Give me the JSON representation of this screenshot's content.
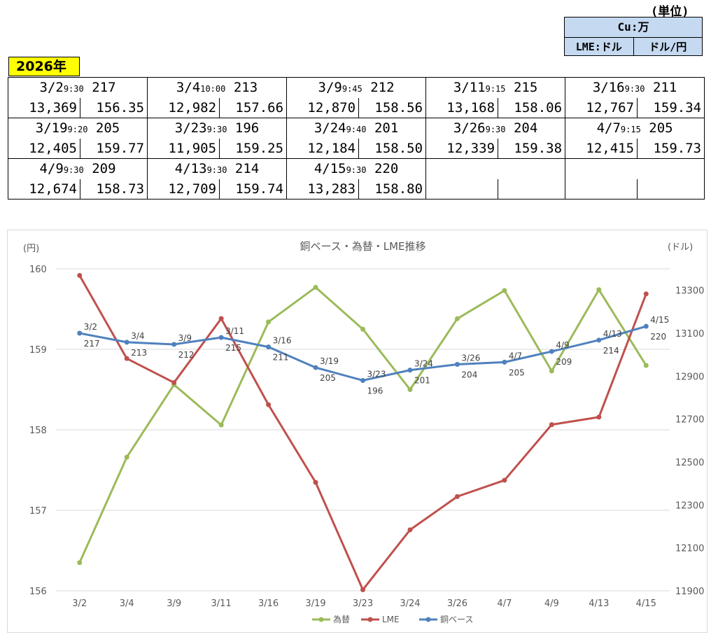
{
  "unit": {
    "label": "(単位)",
    "cu": "Cu:万",
    "lme": "LME:ドル",
    "fx": "ドル/円"
  },
  "year": "2026年",
  "entries": [
    {
      "date": "3/2",
      "time": "9:30",
      "base": "217",
      "lme": "13,369",
      "fx": "156.35"
    },
    {
      "date": "3/4",
      "time": "10:00",
      "base": "213",
      "lme": "12,982",
      "fx": "157.66"
    },
    {
      "date": "3/9",
      "time": "9:45",
      "base": "212",
      "lme": "12,870",
      "fx": "158.56"
    },
    {
      "date": "3/11",
      "time": "9:15",
      "base": "215",
      "lme": "13,168",
      "fx": "158.06"
    },
    {
      "date": "3/16",
      "time": "9:30",
      "base": "211",
      "lme": "12,767",
      "fx": "159.34"
    },
    {
      "date": "3/19",
      "time": "9:20",
      "base": "205",
      "lme": "12,405",
      "fx": "159.77"
    },
    {
      "date": "3/23",
      "time": "9:30",
      "base": "196",
      "lme": "11,905",
      "fx": "159.25"
    },
    {
      "date": "3/24",
      "time": "9:40",
      "base": "201",
      "lme": "12,184",
      "fx": "158.50"
    },
    {
      "date": "3/26",
      "time": "9:30",
      "base": "204",
      "lme": "12,339",
      "fx": "159.38"
    },
    {
      "date": "4/7",
      "time": "9:15",
      "base": "205",
      "lme": "12,415",
      "fx": "159.73"
    },
    {
      "date": "4/9",
      "time": "9:30",
      "base": "209",
      "lme": "12,674",
      "fx": "158.73"
    },
    {
      "date": "4/13",
      "time": "9:30",
      "base": "214",
      "lme": "12,709",
      "fx": "159.74"
    },
    {
      "date": "4/15",
      "time": "9:30",
      "base": "220",
      "lme": "13,283",
      "fx": "158.80"
    }
  ],
  "chart_data": {
    "type": "line",
    "title": "銅ベース・為替・LME推移",
    "left_axis_label": "(円)",
    "right_axis_label": "(ドル)",
    "categories": [
      "3/2",
      "3/4",
      "3/9",
      "3/11",
      "3/16",
      "3/19",
      "3/23",
      "3/24",
      "3/26",
      "4/7",
      "4/9",
      "4/13",
      "4/15"
    ],
    "left_ylim": [
      156,
      160
    ],
    "left_ticks": [
      "156",
      "157",
      "158",
      "159",
      "160"
    ],
    "right_ylim": [
      11900,
      13400
    ],
    "right_ticks": [
      "11900",
      "12100",
      "12300",
      "12500",
      "12700",
      "12900",
      "13100",
      "13300"
    ],
    "grid": true,
    "legend_position": "bottom",
    "series": [
      {
        "name": "為替",
        "axis": "left",
        "color": "#9bbb59",
        "values": [
          156.35,
          157.66,
          158.56,
          158.06,
          159.34,
          159.77,
          159.25,
          158.5,
          159.38,
          159.73,
          158.73,
          159.74,
          158.8
        ]
      },
      {
        "name": "LME",
        "axis": "right",
        "color": "#c0504d",
        "values": [
          13369,
          12982,
          12870,
          13168,
          12767,
          12405,
          11905,
          12184,
          12339,
          12415,
          12674,
          12709,
          13283
        ]
      },
      {
        "name": "銅ベース",
        "axis": "right",
        "color": "#4f81bd",
        "values": [
          13100,
          13058,
          13048,
          13080,
          13036,
          12940,
          12880,
          12928,
          12955,
          12965,
          13015,
          13068,
          13132
        ],
        "data_labels": [
          "217",
          "213",
          "212",
          "215",
          "211",
          "205",
          "196",
          "201",
          "204",
          "205",
          "209",
          "214",
          "220"
        ]
      }
    ]
  }
}
